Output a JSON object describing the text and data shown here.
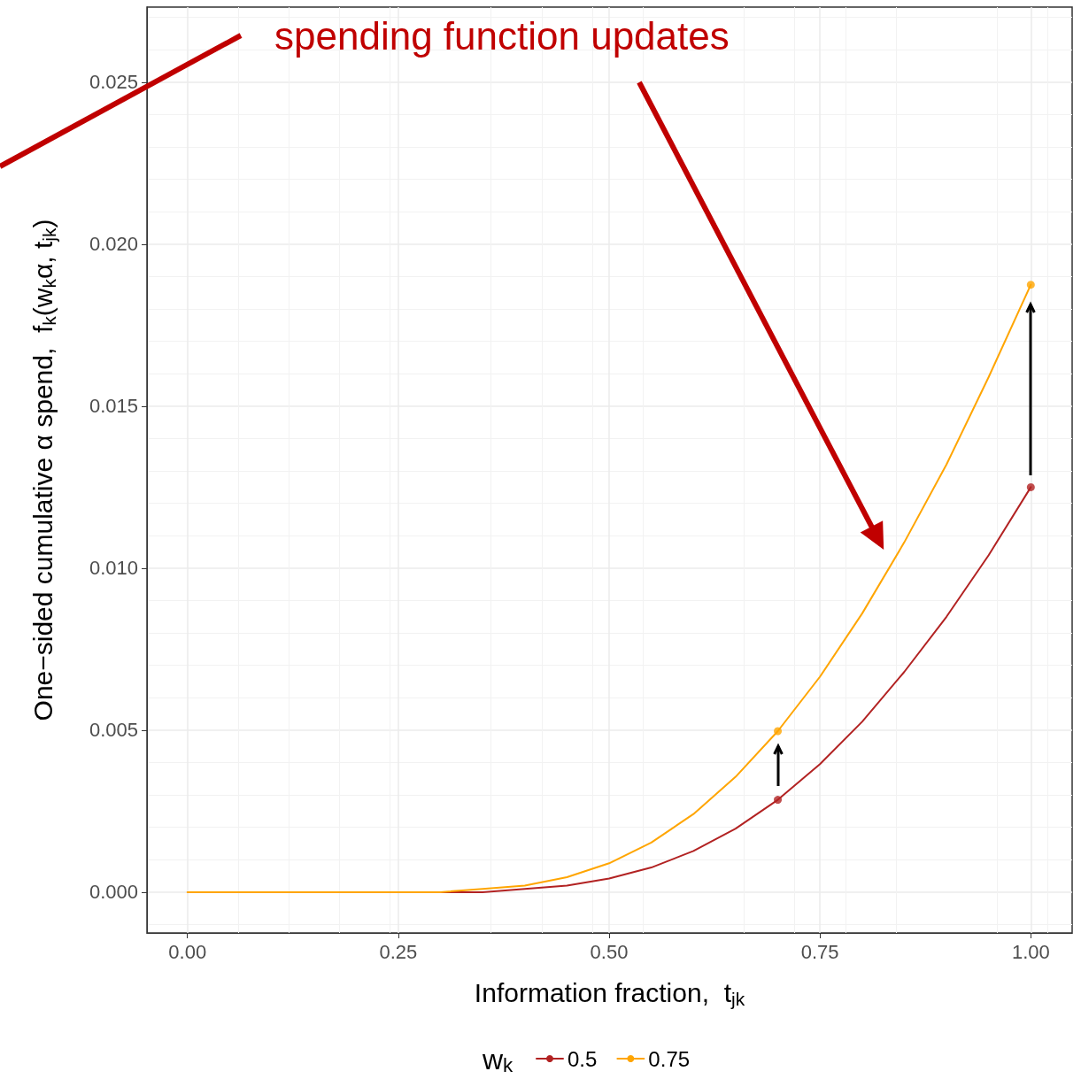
{
  "chart_data": {
    "type": "line",
    "xlabel": "Information fraction,  t$_{jk}$",
    "ylabel": "One−sided cumulative α spend,  f$_{k}$(w$_{k}$α, t$_{jk}$)",
    "legend_title": "w$_{k}$",
    "annotations": [
      "spending function updates"
    ],
    "xlim": [
      -0.048,
      1.049
    ],
    "xticks": [
      {
        "value": 0,
        "label": "0.00"
      },
      {
        "value": 0.25,
        "label": "0.25"
      },
      {
        "value": 0.5,
        "label": "0.50"
      },
      {
        "value": 0.75,
        "label": "0.75"
      },
      {
        "value": 1,
        "label": "1.00"
      }
    ],
    "ylim": [
      -0.00126,
      0.02732
    ],
    "yticks": [
      {
        "value": 0,
        "label": "0.000"
      },
      {
        "value": 0.005,
        "label": "0.005"
      },
      {
        "value": 0.01,
        "label": "0.010"
      },
      {
        "value": 0.015,
        "label": "0.015"
      },
      {
        "value": 0.02,
        "label": "0.020"
      },
      {
        "value": 0.025,
        "label": "0.025"
      }
    ],
    "grid": true,
    "legend": "bottom",
    "series": [
      {
        "name": "0.5",
        "color": "#b22222",
        "x": [
          0.2,
          0.3,
          0.35,
          0.4,
          0.45,
          0.5,
          0.55,
          0.6,
          0.65,
          0.7,
          0.75,
          0.8,
          0.85,
          0.9,
          0.95,
          1
        ],
        "values": [
          0,
          0,
          0,
          0.0001,
          0.0002,
          0.00042,
          0.00076,
          0.00127,
          0.00196,
          0.00285,
          0.00395,
          0.00526,
          0.0068,
          0.0085,
          0.0104,
          0.0125
        ]
      },
      {
        "name": "0.75",
        "color": "#ffa500",
        "x": [
          0,
          0.1,
          0.2,
          0.3,
          0.35,
          0.4,
          0.45,
          0.5,
          0.55,
          0.6,
          0.65,
          0.7,
          0.75,
          0.8,
          0.85,
          0.9,
          0.95,
          1
        ],
        "values": [
          0,
          0,
          0,
          0,
          0.0001,
          0.0002,
          0.00046,
          0.00089,
          0.00153,
          0.00241,
          0.00356,
          0.00497,
          0.00665,
          0.0086,
          0.0108,
          0.0132,
          0.0159,
          0.01875
        ]
      },
      {
        "type": "scatter",
        "marker": "circle",
        "color": "#b22222",
        "x": [
          0.7,
          1
        ],
        "values": [
          0.00285,
          0.0125
        ]
      },
      {
        "type": "scatter",
        "marker": "circle",
        "color": "#ffa500",
        "x": [
          0.7,
          1
        ],
        "values": [
          0.00497,
          0.01875
        ]
      }
    ]
  }
}
